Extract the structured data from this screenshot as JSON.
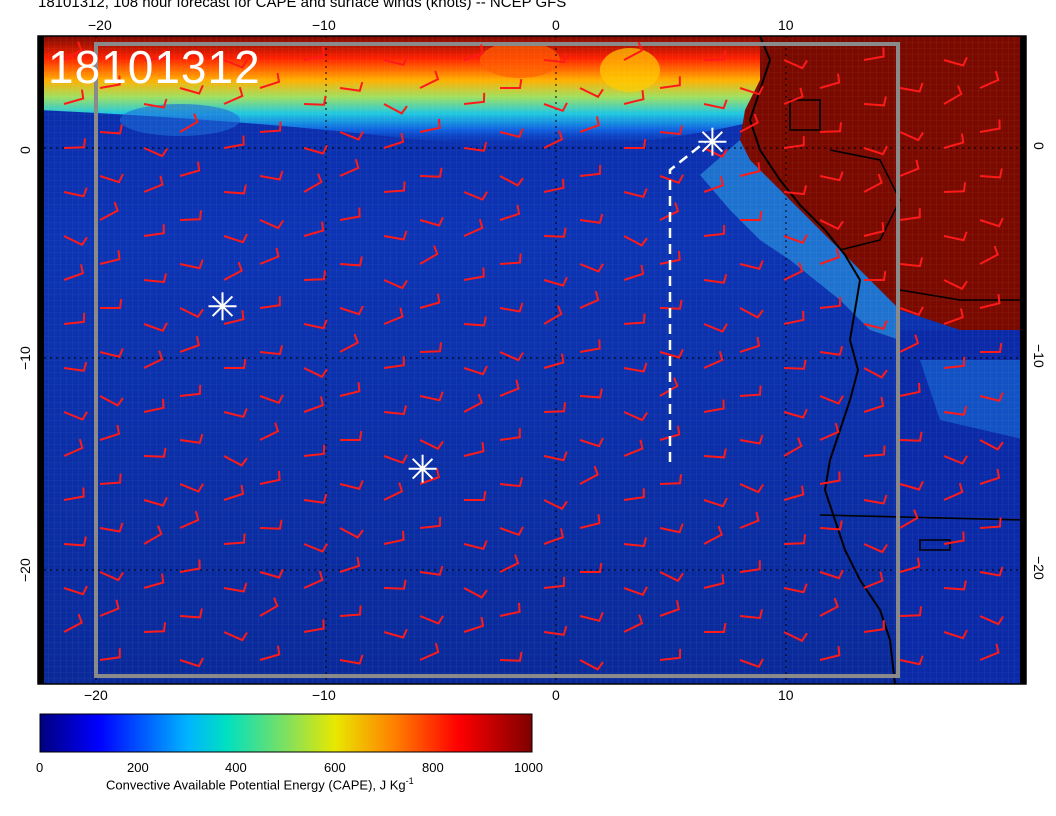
{
  "title": "18101312, 108 hour forecast for CAPE and surface winds (knots) -- NCEP GFS",
  "stamp": "18101312",
  "map": {
    "lon_ticks": [
      "−20",
      "−10",
      "0",
      "10"
    ],
    "lat_ticks": [
      "0",
      "−10",
      "−20"
    ],
    "colors": {
      "ocean_low": "#0b1f8c",
      "ocean_mid": "#1040c8",
      "land_high": "#7a0a00",
      "wind_barb": "#ff1a1a",
      "coast": "#000000",
      "markers": "#ffffff"
    },
    "markers": [
      {
        "lon": -14.5,
        "lat": -7.5
      },
      {
        "lon": -5.8,
        "lat": -15.2
      },
      {
        "lon": 6.8,
        "lat": 0.3
      }
    ]
  },
  "colorbar": {
    "ticks": [
      "0",
      "200",
      "400",
      "600",
      "800",
      "1000"
    ],
    "label": "Convective Available Potential Energy (CAPE), J Kg",
    "label_sup": "-1",
    "range": [
      0,
      1000
    ],
    "colors": [
      "#00007f",
      "#0000ff",
      "#00b4ff",
      "#00e0c0",
      "#7fe060",
      "#e8e800",
      "#ff8000",
      "#ff0000",
      "#7f0000"
    ]
  }
}
